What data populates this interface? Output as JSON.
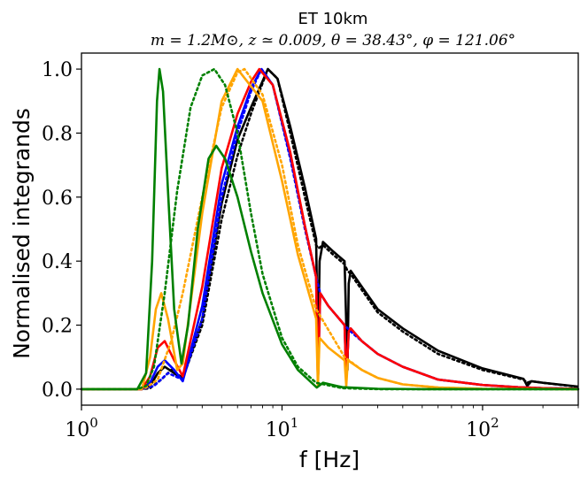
{
  "chart_data": {
    "type": "line",
    "title": "ET 10km",
    "subtitle": "m = 1.2M⊙, z ≃ 0.009, θ = 38.43°, φ = 121.06°",
    "xlabel": "f [Hz]",
    "ylabel": "Normalised integrands",
    "xscale": "log",
    "xlim": [
      1,
      300
    ],
    "ylim": [
      -0.05,
      1.05
    ],
    "x_ticks": [
      {
        "value": 1,
        "label": "10",
        "exp": "0"
      },
      {
        "value": 10,
        "label": "10",
        "exp": "1"
      },
      {
        "value": 100,
        "label": "10",
        "exp": "2"
      }
    ],
    "y_ticks": [
      {
        "value": 0.0,
        "label": "0.0"
      },
      {
        "value": 0.2,
        "label": "0.2"
      },
      {
        "value": 0.4,
        "label": "0.4"
      },
      {
        "value": 0.6,
        "label": "0.6"
      },
      {
        "value": 0.8,
        "label": "0.8"
      },
      {
        "value": 1.0,
        "label": "1.0"
      }
    ],
    "series": [
      {
        "name": "black-dotted",
        "color": "#000000",
        "style": "dotted",
        "x": [
          1,
          2,
          2.2,
          2.5,
          2.8,
          3.2,
          4,
          5,
          6,
          7,
          8.5,
          9.5,
          11,
          13,
          14.8,
          15.2,
          16,
          18,
          20.5,
          21.2,
          22,
          25,
          30,
          40,
          60,
          100,
          160,
          167,
          175,
          200,
          300
        ],
        "y": [
          0,
          0,
          0.003,
          0.03,
          0.06,
          0.035,
          0.2,
          0.53,
          0.73,
          0.86,
          1.0,
          0.97,
          0.8,
          0.6,
          0.45,
          0.44,
          0.45,
          0.42,
          0.39,
          0.37,
          0.36,
          0.31,
          0.24,
          0.18,
          0.11,
          0.06,
          0.03,
          0.02,
          0.025,
          0.02,
          0.007
        ]
      },
      {
        "name": "black",
        "color": "#000000",
        "style": "solid",
        "x": [
          1,
          2,
          2.2,
          2.4,
          2.6,
          2.9,
          3.2,
          4,
          5,
          6,
          7,
          8.5,
          9.5,
          11,
          13,
          14.8,
          15.1,
          15.4,
          16,
          18,
          20.5,
          21.2,
          21.5,
          22,
          25,
          30,
          40,
          60,
          100,
          160,
          167,
          175,
          200,
          300
        ],
        "y": [
          0,
          0,
          0.01,
          0.05,
          0.07,
          0.05,
          0.03,
          0.22,
          0.58,
          0.78,
          0.88,
          1.0,
          0.97,
          0.82,
          0.63,
          0.47,
          0.08,
          0.4,
          0.46,
          0.43,
          0.4,
          0.06,
          0.33,
          0.37,
          0.32,
          0.25,
          0.19,
          0.12,
          0.065,
          0.032,
          0.01,
          0.025,
          0.02,
          0.008
        ]
      },
      {
        "name": "blue-dotted",
        "color": "#0000ff",
        "style": "dotted",
        "x": [
          1,
          2,
          2.3,
          2.7,
          3.2,
          4,
          5,
          6,
          7,
          7.9,
          9,
          11,
          13,
          14.8,
          15.5,
          17,
          20.5,
          22,
          25,
          30,
          40,
          60,
          100,
          150,
          200,
          300
        ],
        "y": [
          0,
          0,
          0.01,
          0.05,
          0.03,
          0.22,
          0.6,
          0.8,
          0.93,
          1.0,
          0.95,
          0.72,
          0.5,
          0.35,
          0.3,
          0.26,
          0.2,
          0.18,
          0.15,
          0.11,
          0.07,
          0.03,
          0.013,
          0.006,
          0.003,
          0.001
        ]
      },
      {
        "name": "blue",
        "color": "#0000ff",
        "style": "solid",
        "x": [
          1,
          2,
          2.2,
          2.4,
          2.6,
          2.9,
          3.2,
          4,
          5,
          6,
          7,
          7.9,
          9,
          11,
          13,
          14.8,
          15.1,
          15.5,
          17,
          20.5,
          20.9,
          21.5,
          22,
          25,
          30,
          40,
          60,
          100,
          150,
          200,
          300
        ],
        "y": [
          0,
          0,
          0.02,
          0.07,
          0.09,
          0.06,
          0.025,
          0.26,
          0.64,
          0.82,
          0.94,
          1.0,
          0.95,
          0.73,
          0.51,
          0.35,
          0.02,
          0.3,
          0.26,
          0.2,
          0.03,
          0.18,
          0.19,
          0.15,
          0.11,
          0.07,
          0.03,
          0.013,
          0.006,
          0.003,
          0.001
        ]
      },
      {
        "name": "red",
        "color": "#ff0000",
        "style": "solid",
        "x": [
          1,
          2,
          2.2,
          2.4,
          2.6,
          2.9,
          3.2,
          4,
          5,
          6,
          7,
          7.7,
          9,
          11,
          13,
          14.8,
          15.1,
          15.5,
          17,
          20.5,
          20.9,
          21.5,
          22,
          25,
          30,
          40,
          60,
          100,
          150,
          200,
          300
        ],
        "y": [
          0,
          0,
          0.04,
          0.13,
          0.15,
          0.09,
          0.04,
          0.32,
          0.69,
          0.86,
          0.96,
          1.0,
          0.95,
          0.74,
          0.51,
          0.35,
          0.02,
          0.3,
          0.26,
          0.2,
          0.03,
          0.18,
          0.19,
          0.15,
          0.11,
          0.07,
          0.03,
          0.013,
          0.006,
          0.003,
          0.001
        ]
      },
      {
        "name": "orange-dotted",
        "color": "#ffa500",
        "style": "dotted",
        "x": [
          1,
          1.9,
          2.1,
          2.4,
          2.8,
          3.2,
          4,
          5,
          6,
          6.5,
          8,
          10,
          12,
          14.8,
          20.5,
          25,
          30,
          40,
          60,
          100,
          300
        ],
        "y": [
          0,
          0,
          0.005,
          0.03,
          0.15,
          0.3,
          0.6,
          0.88,
          0.99,
          1.0,
          0.92,
          0.7,
          0.45,
          0.25,
          0.1,
          0.06,
          0.035,
          0.015,
          0.005,
          0.001,
          0
        ]
      },
      {
        "name": "orange",
        "color": "#ffa500",
        "style": "solid",
        "x": [
          1,
          2,
          2.2,
          2.35,
          2.5,
          2.7,
          3.0,
          3.2,
          4,
          5,
          6,
          8,
          10,
          12,
          14.8,
          15.1,
          15.4,
          17,
          20.5,
          20.9,
          21.3,
          25,
          30,
          40,
          60,
          100,
          300
        ],
        "y": [
          0,
          0,
          0.1,
          0.25,
          0.3,
          0.22,
          0.06,
          0.08,
          0.55,
          0.9,
          1.0,
          0.9,
          0.65,
          0.42,
          0.22,
          0.01,
          0.16,
          0.13,
          0.09,
          0.01,
          0.09,
          0.06,
          0.035,
          0.015,
          0.005,
          0.001,
          0
        ]
      },
      {
        "name": "green-dotted",
        "color": "#008000",
        "style": "dotted",
        "x": [
          1,
          1.9,
          2.1,
          2.3,
          2.6,
          3.0,
          3.5,
          4,
          4.6,
          5.2,
          6,
          7,
          8,
          10,
          12,
          14.8,
          20,
          30,
          50,
          100,
          300
        ],
        "y": [
          0,
          0,
          0.01,
          0.07,
          0.3,
          0.62,
          0.88,
          0.98,
          1.0,
          0.95,
          0.8,
          0.55,
          0.36,
          0.16,
          0.07,
          0.02,
          0.003,
          0,
          0,
          0,
          0
        ]
      },
      {
        "name": "green",
        "color": "#008000",
        "style": "solid",
        "x": [
          1,
          1.9,
          2.1,
          2.25,
          2.38,
          2.45,
          2.55,
          2.7,
          2.9,
          3.15,
          3.4,
          3.8,
          4.3,
          4.7,
          5.2,
          6,
          7,
          8,
          10,
          12,
          14.9,
          16,
          20,
          30,
          50,
          100,
          300
        ],
        "y": [
          0,
          0,
          0.05,
          0.4,
          0.9,
          1.0,
          0.93,
          0.62,
          0.25,
          0.08,
          0.2,
          0.5,
          0.72,
          0.76,
          0.72,
          0.6,
          0.43,
          0.3,
          0.14,
          0.06,
          0.005,
          0.02,
          0.006,
          0.001,
          0,
          0,
          0
        ]
      }
    ]
  }
}
